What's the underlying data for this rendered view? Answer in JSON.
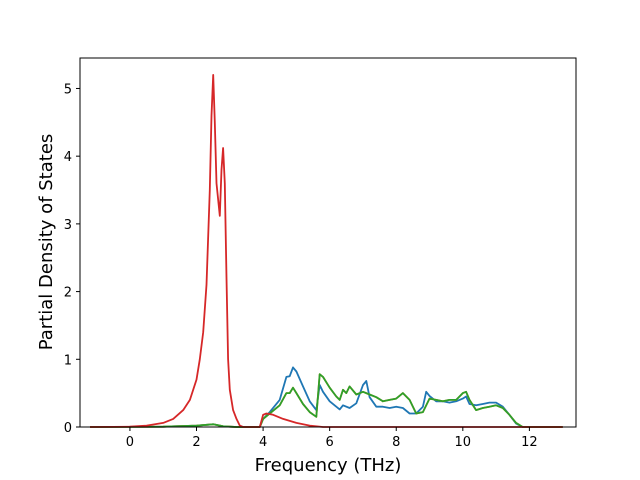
{
  "chart_data": {
    "type": "line",
    "xlabel": "Frequency (THz)",
    "ylabel": "Partial Density of States",
    "xlim": [
      -1.5,
      13.4
    ],
    "ylim": [
      0,
      5.45
    ],
    "xticks": [
      0,
      2,
      4,
      6,
      8,
      10,
      12
    ],
    "yticks": [
      0,
      1,
      2,
      3,
      4,
      5
    ],
    "grid": false,
    "series": [
      {
        "color": "#1f77b4",
        "points": [
          [
            -1.2,
            0
          ],
          [
            1.0,
            0.005
          ],
          [
            2.0,
            0.02
          ],
          [
            2.5,
            0.04
          ],
          [
            2.8,
            0.01
          ],
          [
            3.2,
            0
          ],
          [
            3.9,
            0
          ],
          [
            4.0,
            0.12
          ],
          [
            4.2,
            0.22
          ],
          [
            4.5,
            0.4
          ],
          [
            4.7,
            0.74
          ],
          [
            4.8,
            0.75
          ],
          [
            4.9,
            0.88
          ],
          [
            5.0,
            0.82
          ],
          [
            5.2,
            0.6
          ],
          [
            5.4,
            0.38
          ],
          [
            5.6,
            0.25
          ],
          [
            5.7,
            0.62
          ],
          [
            5.8,
            0.52
          ],
          [
            6.0,
            0.38
          ],
          [
            6.2,
            0.3
          ],
          [
            6.3,
            0.26
          ],
          [
            6.4,
            0.32
          ],
          [
            6.6,
            0.28
          ],
          [
            6.8,
            0.35
          ],
          [
            7.0,
            0.62
          ],
          [
            7.1,
            0.68
          ],
          [
            7.2,
            0.44
          ],
          [
            7.4,
            0.3
          ],
          [
            7.6,
            0.3
          ],
          [
            7.8,
            0.28
          ],
          [
            8.0,
            0.3
          ],
          [
            8.2,
            0.28
          ],
          [
            8.4,
            0.2
          ],
          [
            8.6,
            0.2
          ],
          [
            8.8,
            0.3
          ],
          [
            8.9,
            0.52
          ],
          [
            9.0,
            0.46
          ],
          [
            9.2,
            0.38
          ],
          [
            9.4,
            0.38
          ],
          [
            9.6,
            0.36
          ],
          [
            9.8,
            0.38
          ],
          [
            10.0,
            0.42
          ],
          [
            10.1,
            0.45
          ],
          [
            10.2,
            0.34
          ],
          [
            10.4,
            0.32
          ],
          [
            10.6,
            0.34
          ],
          [
            10.8,
            0.36
          ],
          [
            11.0,
            0.36
          ],
          [
            11.2,
            0.3
          ],
          [
            11.4,
            0.18
          ],
          [
            11.6,
            0.05
          ],
          [
            11.8,
            0
          ],
          [
            13.0,
            0
          ]
        ]
      },
      {
        "color": "#ff7f0e",
        "points": [
          [
            -1.2,
            0
          ],
          [
            1.0,
            0.005
          ],
          [
            2.0,
            0.02
          ],
          [
            2.5,
            0.04
          ],
          [
            2.8,
            0.01
          ],
          [
            3.2,
            0
          ],
          [
            3.9,
            0
          ],
          [
            4.0,
            0.12
          ],
          [
            4.2,
            0.2
          ],
          [
            4.5,
            0.32
          ],
          [
            4.7,
            0.5
          ],
          [
            4.8,
            0.5
          ],
          [
            4.9,
            0.58
          ],
          [
            5.0,
            0.5
          ],
          [
            5.2,
            0.34
          ],
          [
            5.4,
            0.22
          ],
          [
            5.6,
            0.15
          ],
          [
            5.7,
            0.78
          ],
          [
            5.8,
            0.74
          ],
          [
            6.0,
            0.58
          ],
          [
            6.2,
            0.45
          ],
          [
            6.3,
            0.4
          ],
          [
            6.4,
            0.55
          ],
          [
            6.5,
            0.5
          ],
          [
            6.6,
            0.6
          ],
          [
            6.8,
            0.48
          ],
          [
            7.0,
            0.52
          ],
          [
            7.2,
            0.48
          ],
          [
            7.4,
            0.44
          ],
          [
            7.6,
            0.38
          ],
          [
            7.8,
            0.4
          ],
          [
            8.0,
            0.42
          ],
          [
            8.2,
            0.5
          ],
          [
            8.4,
            0.4
          ],
          [
            8.6,
            0.2
          ],
          [
            8.8,
            0.22
          ],
          [
            9.0,
            0.42
          ],
          [
            9.2,
            0.4
          ],
          [
            9.4,
            0.38
          ],
          [
            9.6,
            0.4
          ],
          [
            9.8,
            0.4
          ],
          [
            10.0,
            0.5
          ],
          [
            10.1,
            0.52
          ],
          [
            10.2,
            0.4
          ],
          [
            10.4,
            0.25
          ],
          [
            10.6,
            0.28
          ],
          [
            10.8,
            0.3
          ],
          [
            11.0,
            0.32
          ],
          [
            11.2,
            0.28
          ],
          [
            11.4,
            0.18
          ],
          [
            11.6,
            0.06
          ],
          [
            11.8,
            0
          ],
          [
            13.0,
            0
          ]
        ]
      },
      {
        "color": "#2ca02c",
        "points": [
          [
            -1.2,
            0
          ],
          [
            1.0,
            0.005
          ],
          [
            2.0,
            0.02
          ],
          [
            2.5,
            0.04
          ],
          [
            2.8,
            0.01
          ],
          [
            3.2,
            0
          ],
          [
            3.9,
            0
          ],
          [
            4.0,
            0.12
          ],
          [
            4.2,
            0.2
          ],
          [
            4.5,
            0.32
          ],
          [
            4.7,
            0.5
          ],
          [
            4.8,
            0.5
          ],
          [
            4.9,
            0.58
          ],
          [
            5.0,
            0.5
          ],
          [
            5.2,
            0.34
          ],
          [
            5.4,
            0.22
          ],
          [
            5.6,
            0.15
          ],
          [
            5.7,
            0.78
          ],
          [
            5.8,
            0.74
          ],
          [
            6.0,
            0.58
          ],
          [
            6.2,
            0.45
          ],
          [
            6.3,
            0.4
          ],
          [
            6.4,
            0.55
          ],
          [
            6.5,
            0.5
          ],
          [
            6.6,
            0.6
          ],
          [
            6.8,
            0.48
          ],
          [
            7.0,
            0.52
          ],
          [
            7.2,
            0.48
          ],
          [
            7.4,
            0.44
          ],
          [
            7.6,
            0.38
          ],
          [
            7.8,
            0.4
          ],
          [
            8.0,
            0.42
          ],
          [
            8.2,
            0.5
          ],
          [
            8.4,
            0.4
          ],
          [
            8.6,
            0.2
          ],
          [
            8.8,
            0.22
          ],
          [
            9.0,
            0.42
          ],
          [
            9.2,
            0.4
          ],
          [
            9.4,
            0.38
          ],
          [
            9.6,
            0.4
          ],
          [
            9.8,
            0.4
          ],
          [
            10.0,
            0.5
          ],
          [
            10.1,
            0.52
          ],
          [
            10.2,
            0.4
          ],
          [
            10.4,
            0.25
          ],
          [
            10.6,
            0.28
          ],
          [
            10.8,
            0.3
          ],
          [
            11.0,
            0.32
          ],
          [
            11.2,
            0.28
          ],
          [
            11.4,
            0.18
          ],
          [
            11.6,
            0.06
          ],
          [
            11.8,
            0
          ],
          [
            13.0,
            0
          ]
        ]
      },
      {
        "color": "#d62728",
        "points": [
          [
            -1.2,
            0
          ],
          [
            -0.5,
            0.002
          ],
          [
            0,
            0.005
          ],
          [
            0.5,
            0.02
          ],
          [
            1.0,
            0.06
          ],
          [
            1.3,
            0.12
          ],
          [
            1.6,
            0.25
          ],
          [
            1.8,
            0.4
          ],
          [
            2.0,
            0.7
          ],
          [
            2.1,
            1.0
          ],
          [
            2.2,
            1.4
          ],
          [
            2.3,
            2.1
          ],
          [
            2.4,
            3.5
          ],
          [
            2.45,
            4.6
          ],
          [
            2.5,
            5.2
          ],
          [
            2.55,
            4.5
          ],
          [
            2.6,
            3.6
          ],
          [
            2.7,
            3.12
          ],
          [
            2.75,
            3.8
          ],
          [
            2.8,
            4.12
          ],
          [
            2.85,
            3.6
          ],
          [
            2.9,
            2.2
          ],
          [
            2.95,
            1.0
          ],
          [
            3.0,
            0.55
          ],
          [
            3.1,
            0.25
          ],
          [
            3.2,
            0.12
          ],
          [
            3.3,
            0.02
          ],
          [
            3.4,
            0
          ],
          [
            3.9,
            0
          ],
          [
            4.0,
            0.18
          ],
          [
            4.1,
            0.2
          ],
          [
            4.3,
            0.18
          ],
          [
            4.6,
            0.12
          ],
          [
            5.0,
            0.06
          ],
          [
            5.4,
            0.02
          ],
          [
            5.8,
            0
          ],
          [
            13.0,
            0
          ]
        ]
      }
    ]
  }
}
